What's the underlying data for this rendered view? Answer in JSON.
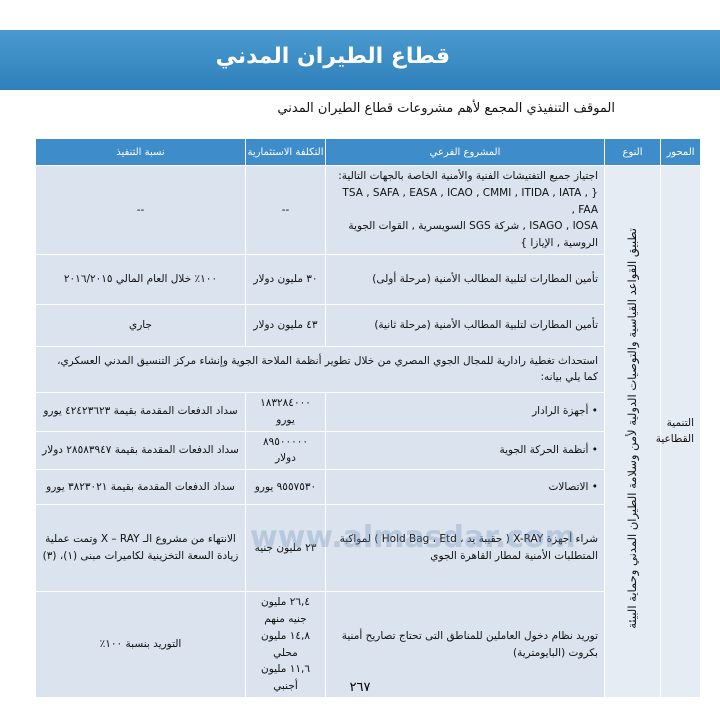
{
  "header": {
    "title": "قطاع الطيران المدني"
  },
  "subtitle": "الموقف التنفيذي المجمع لأهم مشروعات قطاع الطيران المدني",
  "table": {
    "columns": [
      "المحور",
      "النوع",
      "المشروع الفرعي",
      "التكلفة الاستثمارية",
      "نسبة التنفيذ"
    ],
    "axis": "التنمية القطاعية",
    "type": "تطبيق القواعد القياسية والتوصيات الدولية لأمن وسلامة الطيران المدني وحماية البيئة",
    "rows": [
      {
        "project": [
          "اجتياز جميع التفتيشات الفنية والأمنية الخاصة بالجهات التالية:",
          "{ TSA , SAFA , EASA , ICAO , CMMI , ITIDA , IATA , FAA ,",
          "ISAGO , IOSA , شركة SGS السويسرية , القوات الجوية الروسية , الإيازا }"
        ],
        "cost": [
          "--"
        ],
        "progress": [
          "--"
        ]
      },
      {
        "project": [
          "تأمين المطارات لتلبية المطالب الأمنية (مرحلة أولى)"
        ],
        "cost": [
          "٣٠ مليون دولار"
        ],
        "progress": [
          "١٠٠٪ خلال العام المالي ٢٠١٦/٢٠١٥"
        ]
      },
      {
        "project": [
          "تأمين المطارات لتلبية المطالب الأمنية (مرحلة ثانية)"
        ],
        "cost": [
          "٤٣ مليون دولار"
        ],
        "progress": [
          "جاري"
        ]
      },
      {
        "project": [
          "استحداث تغطية رادارية للمجال الجوي المصري من خلال تطوير أنظمة الملاحة الجوية وإنشاء مركز التنسيق المدني العسكري، كما يلي بيانه:"
        ]
      },
      {
        "project": [
          "أجهزة الرادار"
        ],
        "cost": [
          "١٨٣٢٨٤٠٠٠ يورو"
        ],
        "progress": [
          "سداد الدفعات المقدمة بقيمة ٤٢٤٢٣٦٢٣ يورو"
        ]
      },
      {
        "project": [
          "أنظمة الحركة الجوية"
        ],
        "cost": [
          "٨٩٥٠٠٠٠٠ دولار"
        ],
        "progress": [
          "سداد الدفعات المقدمة بقيمة ٢٨٥٨٣٩٤٧ دولار"
        ]
      },
      {
        "project": [
          "الاتصالات"
        ],
        "cost": [
          "٩٥٥٧٥٣٠ يورو"
        ],
        "progress": [
          "سداد الدفعات المقدمة بقيمة ٣٨٢٣٠٢١ يورو"
        ]
      },
      {
        "project": [
          "شراء أجهزة X-RAY ( حقيبة يد ، Hold Bag ، Etd ) لمواكبة المتطلبات الأمنية لمطار القاهرة الجوي"
        ],
        "cost": [
          "٢٣ مليون جنيه"
        ],
        "progress": [
          "الانتهاء من مشروع الـ X – RAY وتمت عملية زيادة السعة التخزينية لكاميرات مبنى (١)، (٣)"
        ]
      },
      {
        "project": [
          "توريد نظام دخول العاملين للمناطق التى تحتاج تصاريح أمنية بكروت (البايومترية)"
        ],
        "cost": [
          "٢٦,٤ مليون جنيه منهم",
          "١٤,٨ مليون محلي",
          "١١,٦ مليون أجنبي"
        ],
        "progress": [
          "التوريد بنسبة ١٠٠٪"
        ]
      }
    ]
  },
  "watermark": "www.almasdar.com",
  "page_number": "٢٦٧"
}
